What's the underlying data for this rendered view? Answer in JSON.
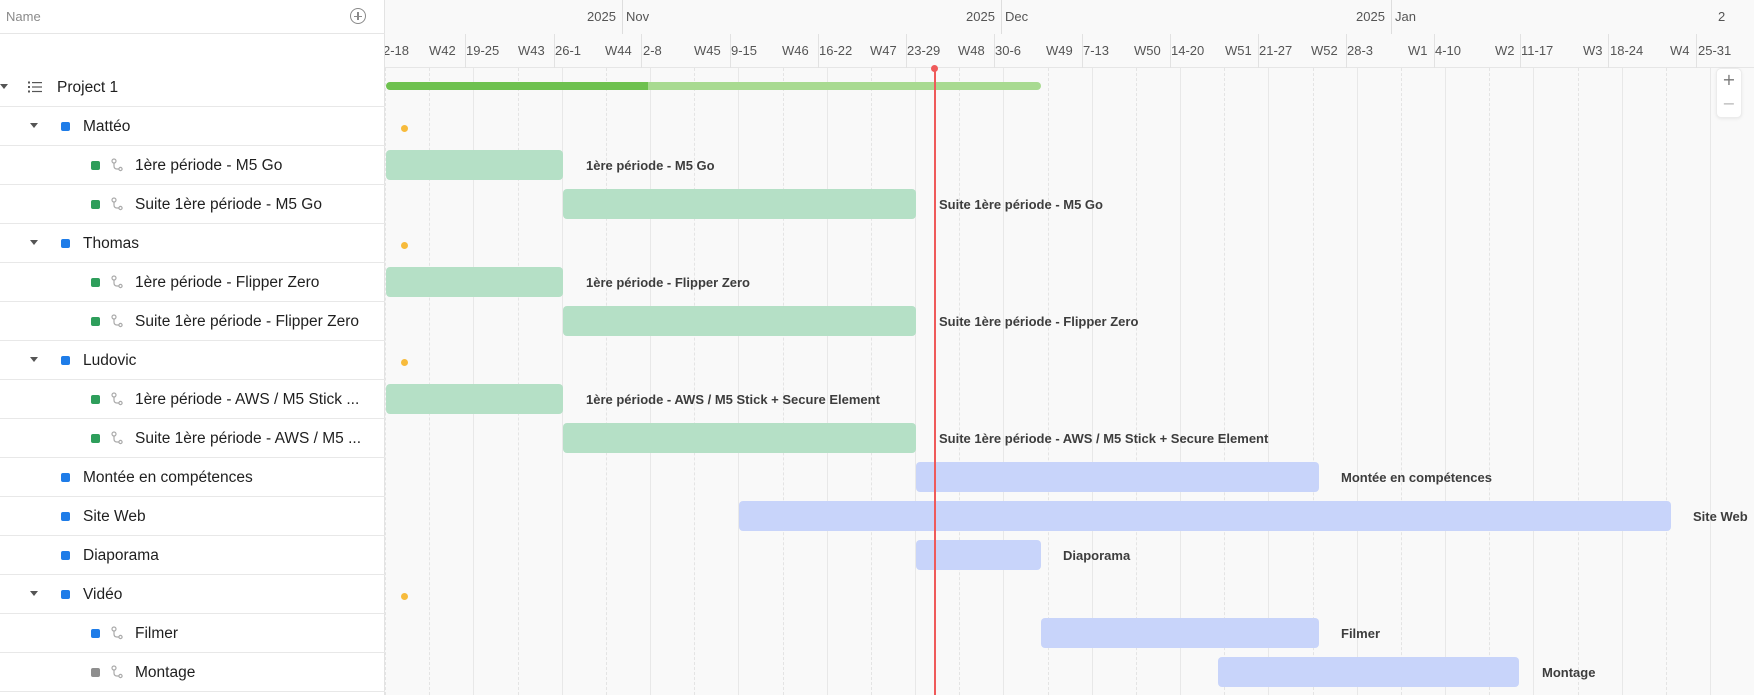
{
  "left_panel": {
    "name_column_label": "Name",
    "add_column_icon": "plus-circle-icon"
  },
  "tree": {
    "project": {
      "label": "Project 1"
    },
    "rows": [
      {
        "label": "Mattéo",
        "color": "#1e7ce8"
      },
      {
        "label": "1ère période - M5 Go",
        "color": "#2e9e5b"
      },
      {
        "label": "Suite 1ère période - M5 Go",
        "color": "#2e9e5b"
      },
      {
        "label": "Thomas",
        "color": "#1e7ce8"
      },
      {
        "label": "1ère période - Flipper Zero",
        "color": "#2e9e5b"
      },
      {
        "label": "Suite 1ère période - Flipper Zero",
        "color": "#2e9e5b"
      },
      {
        "label": "Ludovic",
        "color": "#1e7ce8"
      },
      {
        "label": "1ère période - AWS / M5 Stick ...",
        "color": "#2e9e5b"
      },
      {
        "label": "Suite 1ère période - AWS / M5 ...",
        "color": "#2e9e5b"
      },
      {
        "label": "Montée en compétences",
        "color": "#1e7ce8"
      },
      {
        "label": "Site Web",
        "color": "#1e7ce8"
      },
      {
        "label": "Diaporama",
        "color": "#1e7ce8"
      },
      {
        "label": "Vidéo",
        "color": "#1e7ce8"
      },
      {
        "label": "Filmer",
        "color": "#1e7ce8"
      },
      {
        "label": "Montage",
        "color": "#8e8e8e"
      }
    ]
  },
  "timeline": {
    "months": [
      {
        "year": "2025",
        "month": "Nov"
      },
      {
        "year": "2025",
        "month": "Dec"
      },
      {
        "year": "2025",
        "month": "Jan"
      },
      {
        "year": "2",
        "month": ""
      }
    ],
    "weeks": [
      "2-18",
      "W42",
      "19-25",
      "W43",
      "26-1",
      "W44",
      "2-8",
      "W45",
      "9-15",
      "W46",
      "16-22",
      "W47",
      "23-29",
      "W48",
      "30-6",
      "W49",
      "7-13",
      "W50",
      "14-20",
      "W51",
      "21-27",
      "W52",
      "28-3",
      "W1",
      "4-10",
      "W2",
      "11-17",
      "W3",
      "18-24",
      "W4",
      "25-31"
    ],
    "project_progress": 0.4,
    "bars": [
      {
        "label": "1ère période - M5 Go",
        "color": "green"
      },
      {
        "label": "Suite 1ère période - M5 Go",
        "color": "green"
      },
      {
        "label": "1ère période - Flipper Zero",
        "color": "green"
      },
      {
        "label": "Suite 1ère période - Flipper Zero",
        "color": "green"
      },
      {
        "label": "1ère période - AWS / M5 Stick + Secure Element",
        "color": "green"
      },
      {
        "label": "Suite 1ère période - AWS / M5 Stick + Secure Element",
        "color": "green"
      },
      {
        "label": "Montée en compétences",
        "color": "blue"
      },
      {
        "label": "Site Web",
        "color": "blue"
      },
      {
        "label": "Diaporama",
        "color": "blue"
      },
      {
        "label": "Filmer",
        "color": "blue"
      },
      {
        "label": "Montage",
        "color": "blue"
      }
    ],
    "zoom": {
      "in": "+",
      "out": "−"
    }
  },
  "colors": {
    "today_line": "#ef5a5a",
    "milestone": "#f7bb3c",
    "task_green": "#b5e0c6",
    "task_blue": "#c8d4fa",
    "progress_done": "#6ec14f",
    "progress_remaining": "#a8da91"
  }
}
